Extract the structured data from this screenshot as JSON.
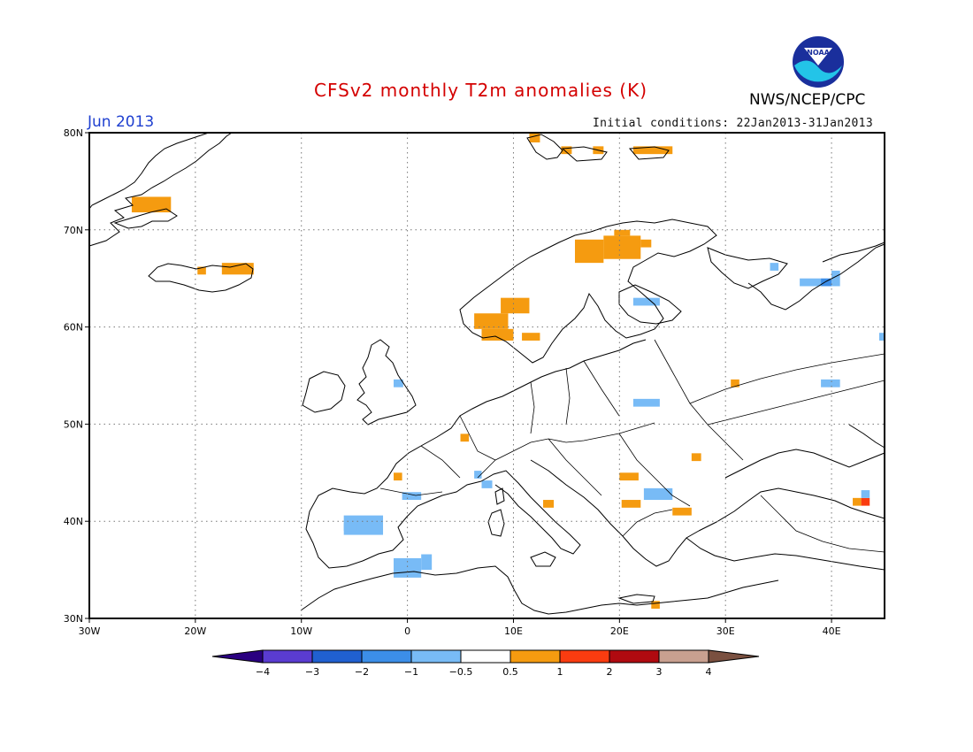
{
  "title": "CFSv2 monthly T2m anomalies (K)",
  "month_label": "Jun 2013",
  "initial_conditions": "Initial conditions: 22Jan2013-31Jan2013",
  "agency": "NWS/NCEP/CPC",
  "logo_text": "NOAA",
  "map": {
    "lon_range": [
      -30,
      45
    ],
    "lat_range": [
      30,
      80
    ],
    "lon_ticks": [
      {
        "lon": -30,
        "label": "30W"
      },
      {
        "lon": -20,
        "label": "20W"
      },
      {
        "lon": -10,
        "label": "10W"
      },
      {
        "lon": 0,
        "label": "0"
      },
      {
        "lon": 10,
        "label": "10E"
      },
      {
        "lon": 20,
        "label": "20E"
      },
      {
        "lon": 30,
        "label": "30E"
      },
      {
        "lon": 40,
        "label": "40E"
      }
    ],
    "lat_ticks": [
      {
        "lat": 30,
        "label": "30N"
      },
      {
        "lat": 40,
        "label": "40N"
      },
      {
        "lat": 50,
        "label": "50N"
      },
      {
        "lat": 60,
        "label": "60N"
      },
      {
        "lat": 70,
        "label": "70N"
      },
      {
        "lat": 80,
        "label": "80N"
      }
    ],
    "grid": true,
    "anomaly_cells": [
      {
        "lon": 11.5,
        "lat": 79.0,
        "lon2": 12.5,
        "lat2": 80.0,
        "cat": "warm1"
      },
      {
        "lon": 14.5,
        "lat": 77.8,
        "lon2": 15.5,
        "lat2": 78.6,
        "cat": "warm1"
      },
      {
        "lon": 17.5,
        "lat": 77.8,
        "lon2": 18.5,
        "lat2": 78.6,
        "cat": "warm1"
      },
      {
        "lon": 21.3,
        "lat": 77.8,
        "lon2": 25.0,
        "lat2": 78.6,
        "cat": "warm1"
      },
      {
        "lon": -26.0,
        "lat": 71.8,
        "lon2": -22.3,
        "lat2": 73.4,
        "cat": "warm1"
      },
      {
        "lon": -19.8,
        "lat": 65.4,
        "lon2": -19.0,
        "lat2": 66.2,
        "cat": "warm1"
      },
      {
        "lon": -17.5,
        "lat": 65.4,
        "lon2": -14.5,
        "lat2": 66.6,
        "cat": "warm1"
      },
      {
        "lon": 15.8,
        "lat": 66.6,
        "lon2": 18.5,
        "lat2": 69.0,
        "cat": "warm1"
      },
      {
        "lon": 18.5,
        "lat": 67.0,
        "lon2": 22.0,
        "lat2": 69.4,
        "cat": "warm1"
      },
      {
        "lon": 22.0,
        "lat": 68.2,
        "lon2": 23.0,
        "lat2": 69.0,
        "cat": "warm1"
      },
      {
        "lon": 19.5,
        "lat": 69.4,
        "lon2": 21.0,
        "lat2": 70.0,
        "cat": "warm1"
      },
      {
        "lon": 8.8,
        "lat": 61.4,
        "lon2": 11.5,
        "lat2": 63.0,
        "cat": "warm1"
      },
      {
        "lon": 6.3,
        "lat": 59.8,
        "lon2": 9.5,
        "lat2": 61.4,
        "cat": "warm1"
      },
      {
        "lon": 7.0,
        "lat": 58.6,
        "lon2": 10.0,
        "lat2": 59.8,
        "cat": "warm1"
      },
      {
        "lon": 10.8,
        "lat": 58.6,
        "lon2": 12.5,
        "lat2": 59.4,
        "cat": "warm1"
      },
      {
        "lon": 5.0,
        "lat": 48.2,
        "lon2": 5.8,
        "lat2": 49.0,
        "cat": "warm1"
      },
      {
        "lon": -1.3,
        "lat": 44.2,
        "lon2": -0.5,
        "lat2": 45.0,
        "cat": "warm1"
      },
      {
        "lon": 12.8,
        "lat": 41.4,
        "lon2": 13.8,
        "lat2": 42.2,
        "cat": "warm1"
      },
      {
        "lon": 20.0,
        "lat": 44.2,
        "lon2": 21.8,
        "lat2": 45.0,
        "cat": "warm1"
      },
      {
        "lon": 20.2,
        "lat": 41.4,
        "lon2": 22.0,
        "lat2": 42.2,
        "cat": "warm1"
      },
      {
        "lon": 25.0,
        "lat": 40.6,
        "lon2": 26.8,
        "lat2": 41.4,
        "cat": "warm1"
      },
      {
        "lon": 26.8,
        "lat": 46.2,
        "lon2": 27.7,
        "lat2": 47.0,
        "cat": "warm1"
      },
      {
        "lon": 30.5,
        "lat": 53.8,
        "lon2": 31.3,
        "lat2": 54.6,
        "cat": "warm1"
      },
      {
        "lon": 23.0,
        "lat": 31.0,
        "lon2": 23.8,
        "lat2": 31.8,
        "cat": "warm1"
      },
      {
        "lon": 42.0,
        "lat": 41.6,
        "lon2": 42.8,
        "lat2": 42.4,
        "cat": "warm1"
      },
      {
        "lon": 42.8,
        "lat": 41.6,
        "lon2": 43.6,
        "lat2": 42.4,
        "cat": "warm2"
      },
      {
        "lon": 21.3,
        "lat": 62.2,
        "lon2": 23.8,
        "lat2": 63.0,
        "cat": "cool1"
      },
      {
        "lon": 21.3,
        "lat": 51.8,
        "lon2": 23.8,
        "lat2": 52.6,
        "cat": "cool1"
      },
      {
        "lon": -1.3,
        "lat": 53.8,
        "lon2": -0.4,
        "lat2": 54.6,
        "cat": "cool1"
      },
      {
        "lon": 6.3,
        "lat": 44.4,
        "lon2": 7.0,
        "lat2": 45.2,
        "cat": "cool1"
      },
      {
        "lon": 7.0,
        "lat": 43.4,
        "lon2": 8.0,
        "lat2": 44.2,
        "cat": "cool1"
      },
      {
        "lon": -0.5,
        "lat": 42.2,
        "lon2": 1.3,
        "lat2": 43.0,
        "cat": "cool1"
      },
      {
        "lon": 22.3,
        "lat": 42.2,
        "lon2": 25.0,
        "lat2": 43.4,
        "cat": "cool1"
      },
      {
        "lon": -6.0,
        "lat": 38.6,
        "lon2": -2.3,
        "lat2": 40.6,
        "cat": "cool1"
      },
      {
        "lon": -6.0,
        "lat": 39.0,
        "lon2": -4.8,
        "lat2": 39.8,
        "cat": "cool1"
      },
      {
        "lon": -1.3,
        "lat": 34.2,
        "lon2": 1.3,
        "lat2": 36.2,
        "cat": "cool1"
      },
      {
        "lon": 1.3,
        "lat": 35.0,
        "lon2": 2.3,
        "lat2": 36.6,
        "cat": "cool1"
      },
      {
        "lon": 34.2,
        "lat": 65.8,
        "lon2": 35.0,
        "lat2": 66.6,
        "cat": "cool1"
      },
      {
        "lon": 37.0,
        "lat": 64.2,
        "lon2": 39.0,
        "lat2": 65.0,
        "cat": "cool1"
      },
      {
        "lon": 39.0,
        "lat": 64.2,
        "lon2": 40.0,
        "lat2": 65.0,
        "cat": "cool2"
      },
      {
        "lon": 40.0,
        "lat": 64.2,
        "lon2": 40.8,
        "lat2": 65.8,
        "cat": "cool1"
      },
      {
        "lon": 39.0,
        "lat": 53.8,
        "lon2": 40.8,
        "lat2": 54.6,
        "cat": "cool1"
      },
      {
        "lon": 44.5,
        "lat": 58.6,
        "lon2": 45.0,
        "lat2": 59.4,
        "cat": "cool1"
      },
      {
        "lon": 42.8,
        "lat": 42.4,
        "lon2": 43.6,
        "lat2": 43.2,
        "cat": "cool1"
      }
    ]
  },
  "colorbar": {
    "boundaries": [
      -4,
      -3,
      -2,
      -1,
      -0.5,
      0.5,
      1,
      2,
      3,
      4
    ],
    "labels": [
      "−4",
      "−3",
      "−2",
      "−1",
      "−0.5",
      "0.5",
      "1",
      "2",
      "3",
      "4"
    ],
    "low_cap_color": "#2a0080",
    "high_cap_color": "#7a5040",
    "colors": [
      "#5a3cd0",
      "#2060d0",
      "#3c8ee8",
      "#78bbf6",
      "#ffffff",
      "#f59b10",
      "#fa3c10",
      "#b00a10",
      "#c8a090"
    ]
  },
  "category_colors": {
    "cool2": "#3c8ee8",
    "cool1": "#78bbf6",
    "warm1": "#f59b10",
    "warm2": "#fa3c10"
  }
}
